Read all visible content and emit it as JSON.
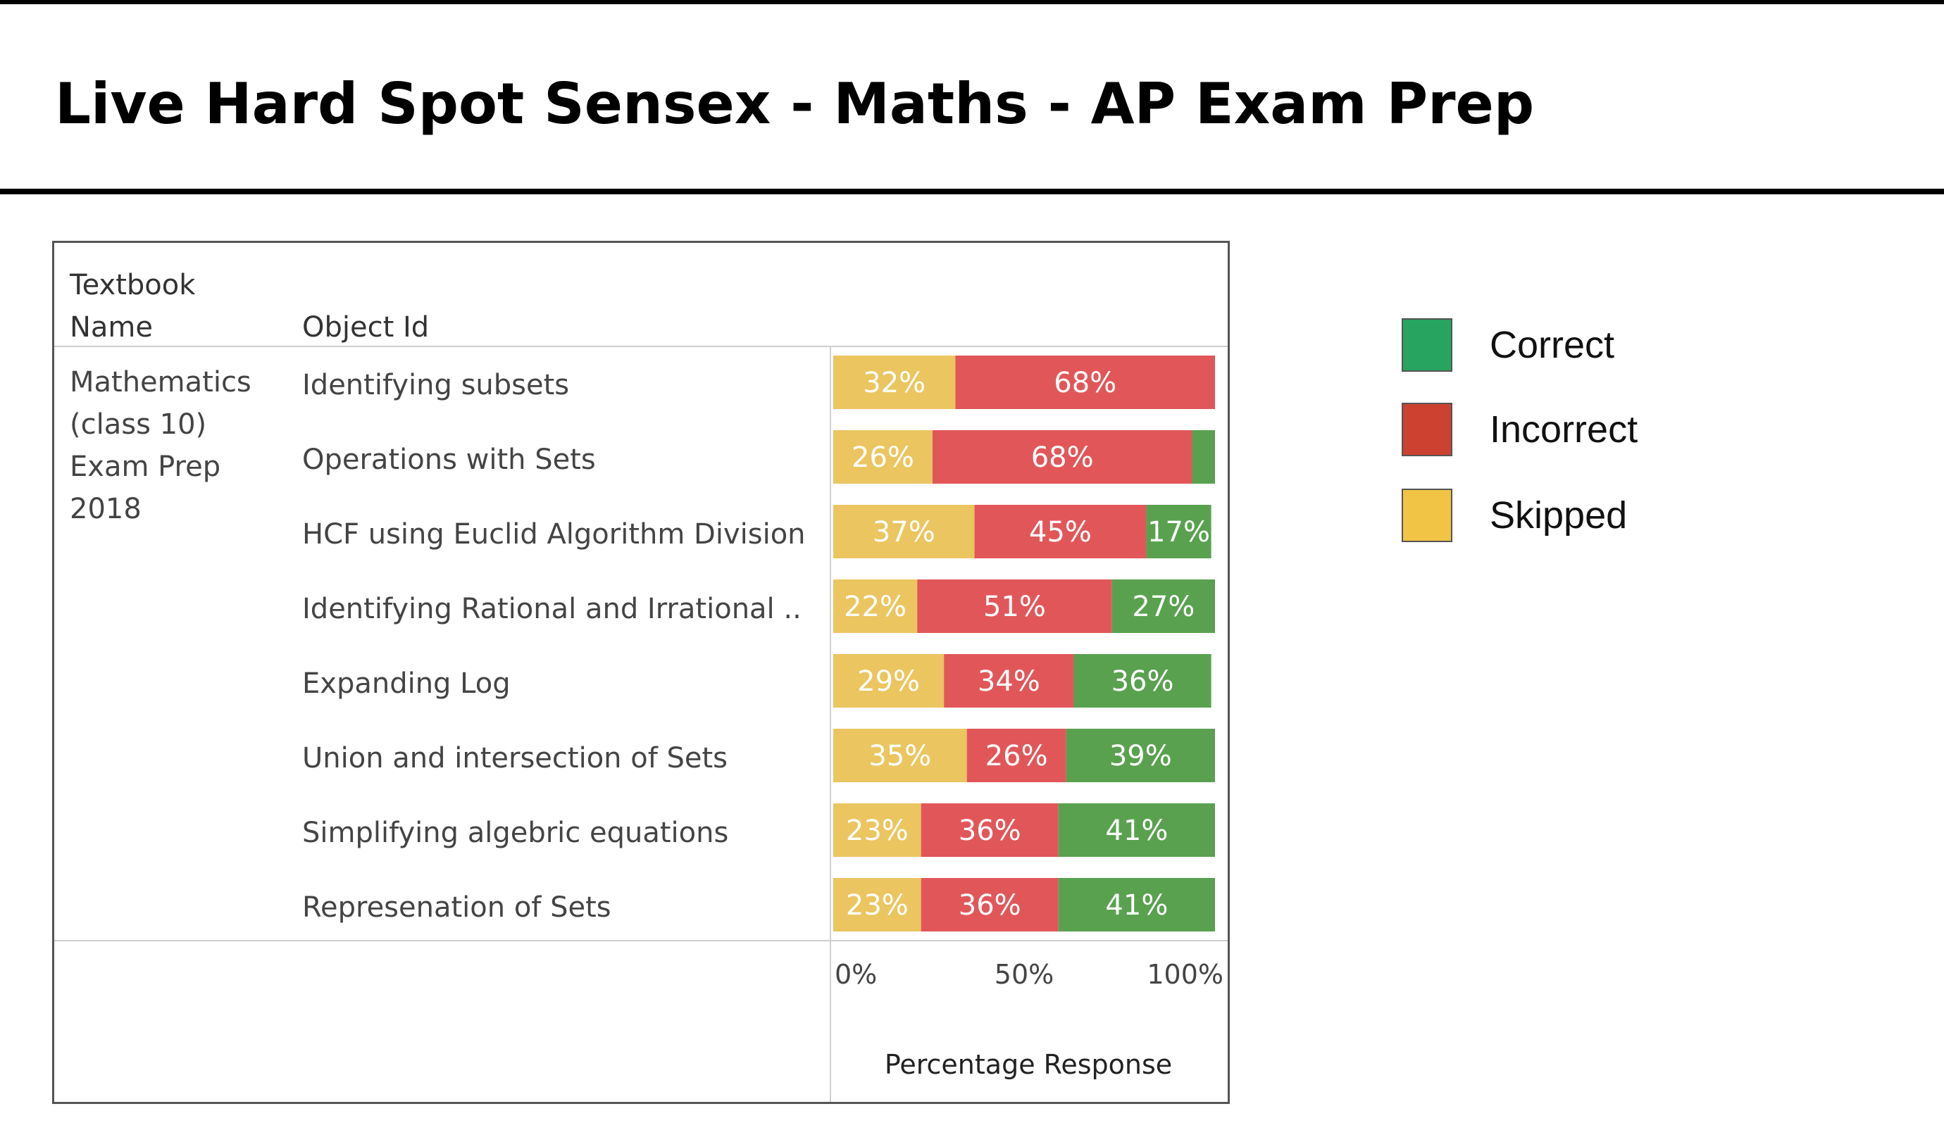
{
  "title": "Live Hard Spot Sensex - Maths - AP Exam Prep",
  "table": {
    "textbook_header_lines": [
      "Textbook",
      "Name"
    ],
    "object_header": "Object Id",
    "textbook_name_lines": [
      "Mathematics",
      "(class 10)",
      "Exam Prep",
      "2018"
    ]
  },
  "legend": [
    {
      "label": "Correct",
      "color": "#27a560"
    },
    {
      "label": "Incorrect",
      "color": "#cc4130"
    },
    {
      "label": "Skipped",
      "color": "#f2c445"
    }
  ],
  "colors": {
    "skipped": "#ebc560",
    "incorrect": "#e15759",
    "correct": "#59a14f",
    "label_text": "#ffffff"
  },
  "chart_data": {
    "type": "bar",
    "stacked": true,
    "orientation": "horizontal",
    "categories": [
      "Identifying subsets",
      "Operations with Sets",
      "HCF using Euclid Algorithm Division",
      "Identifying Rational and Irrational ..",
      "Expanding Log",
      "Union and intersection of Sets",
      "Simplifying algebric equations",
      "Represenation of Sets"
    ],
    "series": [
      {
        "name": "Skipped",
        "values": [
          32,
          26,
          37,
          22,
          29,
          35,
          23,
          23
        ],
        "labels": [
          "32%",
          "26%",
          "37%",
          "22%",
          "29%",
          "35%",
          "23%",
          "23%"
        ]
      },
      {
        "name": "Incorrect",
        "values": [
          68,
          68,
          45,
          51,
          34,
          26,
          36,
          36
        ],
        "labels": [
          "68%",
          "68%",
          "45%",
          "51%",
          "34%",
          "26%",
          "36%",
          "36%"
        ]
      },
      {
        "name": "Correct",
        "values": [
          0,
          6,
          17,
          27,
          36,
          39,
          41,
          41
        ],
        "labels": [
          "",
          "",
          "17%",
          "27%",
          "36%",
          "39%",
          "41%",
          "41%"
        ]
      }
    ],
    "xlim": [
      0,
      100
    ],
    "x_ticks": [
      "0%",
      "50%",
      "100%"
    ],
    "xlabel": "Percentage Response",
    "legend_position": "right"
  }
}
